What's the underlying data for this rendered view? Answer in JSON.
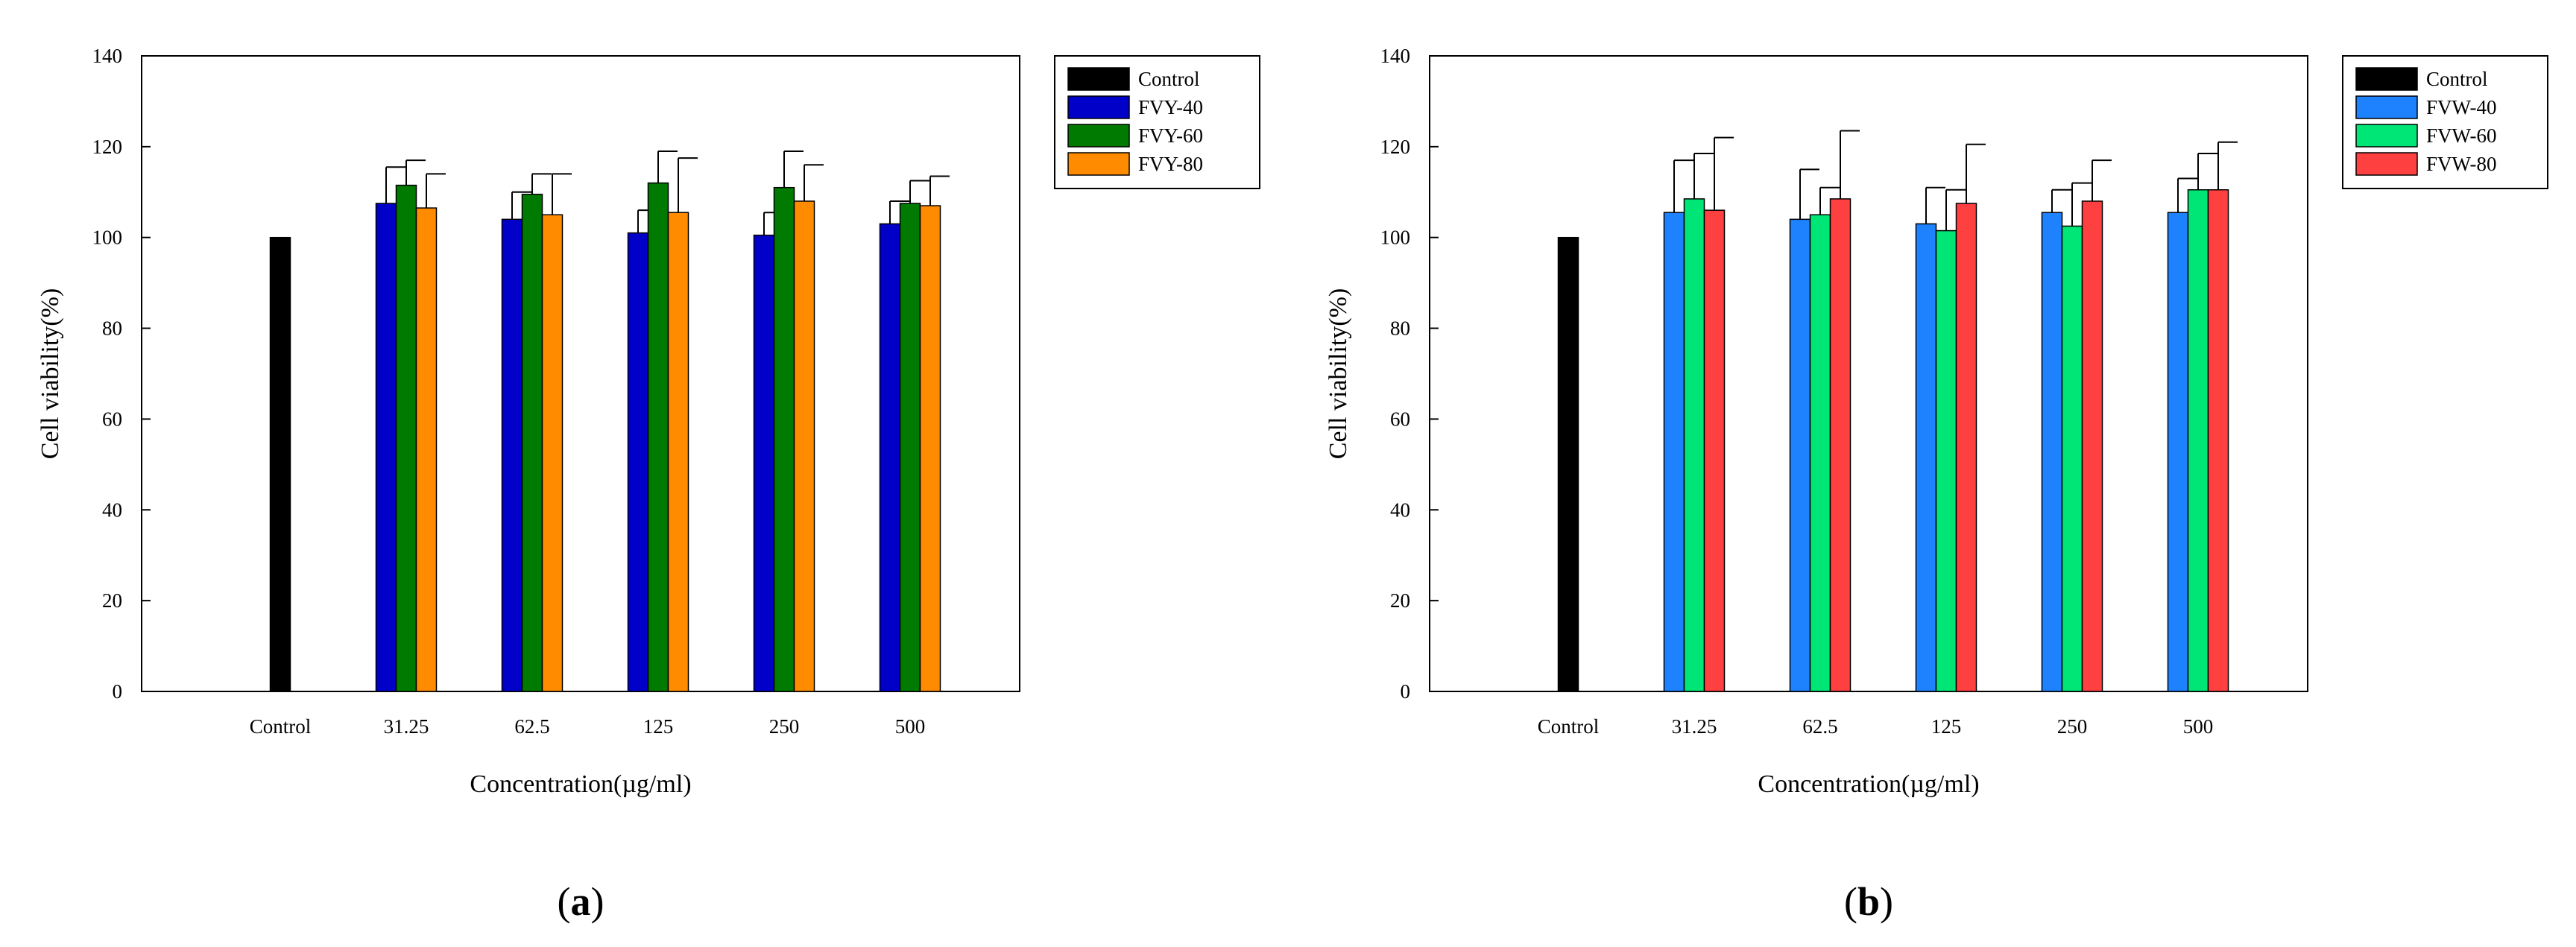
{
  "chart_data": [
    {
      "type": "bar",
      "panel_label": "(a)",
      "xlabel": "Concentration(µg/ml)",
      "ylabel": "Cell viability(%)",
      "ylim": [
        0,
        140
      ],
      "yticks": [
        0,
        20,
        40,
        60,
        80,
        100,
        120,
        140
      ],
      "categories": [
        "Control",
        "31.25",
        "62.5",
        "125",
        "250",
        "500"
      ],
      "series": [
        {
          "name": "Control",
          "color": "#000000",
          "values": [
            100,
            null,
            null,
            null,
            null,
            null
          ],
          "errors": [
            null,
            null,
            null,
            null,
            null,
            null
          ]
        },
        {
          "name": "FVY-40",
          "color": "#0000c8",
          "values": [
            null,
            107.5,
            104,
            101,
            100.5,
            103
          ],
          "errors": [
            null,
            8,
            6,
            5,
            5,
            5
          ]
        },
        {
          "name": "FVY-60",
          "color": "#007a00",
          "values": [
            null,
            111.5,
            109.5,
            112,
            111,
            107.5
          ],
          "errors": [
            null,
            5.5,
            4.5,
            7,
            8,
            5
          ]
        },
        {
          "name": "FVY-80",
          "color": "#ff8c00",
          "values": [
            null,
            106.5,
            105,
            105.5,
            108,
            107
          ],
          "errors": [
            null,
            7.5,
            9,
            12,
            8,
            6.5
          ]
        }
      ],
      "legend": "right"
    },
    {
      "type": "bar",
      "panel_label": "(b)",
      "xlabel": "Concentration(µg/ml)",
      "ylabel": "Cell viability(%)",
      "ylim": [
        0,
        140
      ],
      "yticks": [
        0,
        20,
        40,
        60,
        80,
        100,
        120,
        140
      ],
      "categories": [
        "Control",
        "31.25",
        "62.5",
        "125",
        "250",
        "500"
      ],
      "series": [
        {
          "name": "Control",
          "color": "#000000",
          "values": [
            100,
            null,
            null,
            null,
            null,
            null
          ],
          "errors": [
            null,
            null,
            null,
            null,
            null,
            null
          ]
        },
        {
          "name": "FVW-40",
          "color": "#1e82ff",
          "values": [
            null,
            105.5,
            104,
            103,
            105.5,
            105.5
          ],
          "errors": [
            null,
            11.5,
            11,
            8,
            5,
            7.5
          ]
        },
        {
          "name": "FVW-60",
          "color": "#00e676",
          "values": [
            null,
            108.5,
            105,
            101.5,
            102.5,
            110.5
          ],
          "errors": [
            null,
            10,
            6,
            9,
            9.5,
            8
          ]
        },
        {
          "name": "FVW-80",
          "color": "#ff4040",
          "values": [
            null,
            106,
            108.5,
            107.5,
            108,
            110.5
          ],
          "errors": [
            null,
            16,
            15,
            13,
            9,
            10.5
          ]
        }
      ],
      "legend": "right"
    }
  ]
}
